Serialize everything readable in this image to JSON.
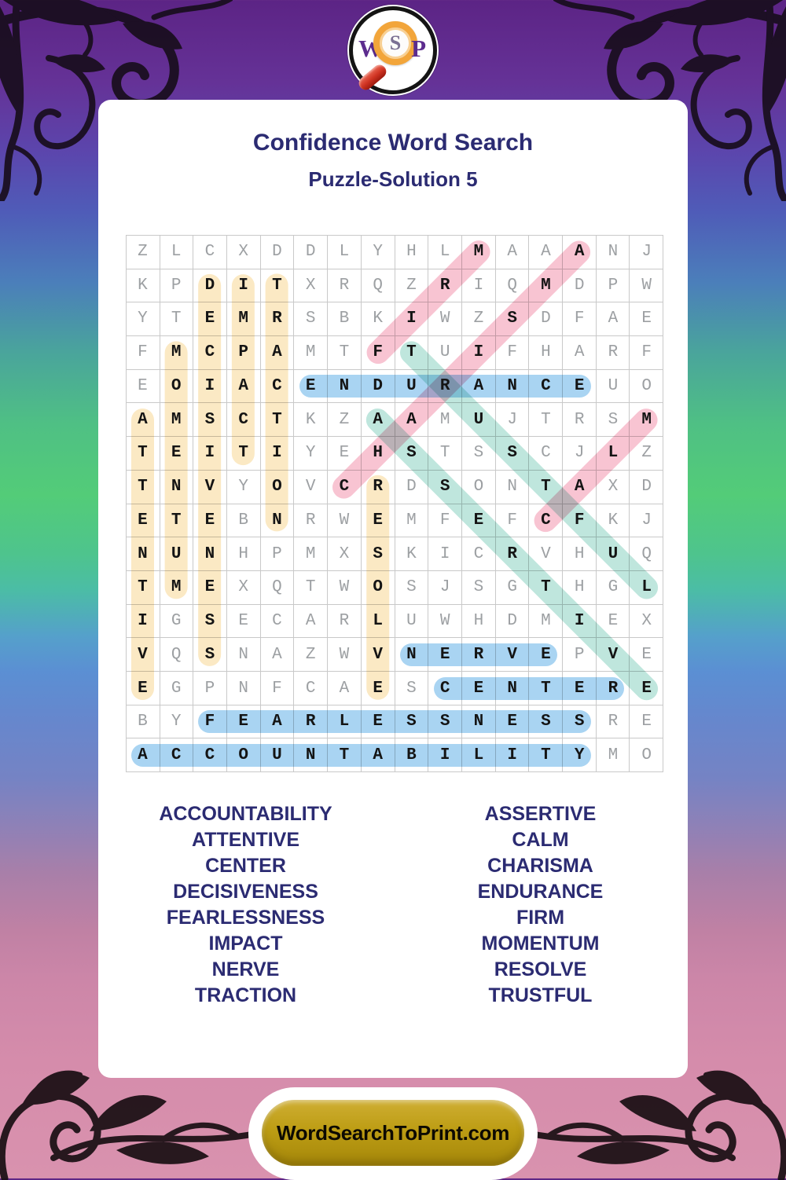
{
  "page": {
    "title": "Confidence Word Search",
    "subtitle": "Puzzle-Solution 5"
  },
  "logo": {
    "letters": [
      "W",
      "S",
      "P"
    ]
  },
  "grid": {
    "size": 16,
    "rows": [
      "ZLCXDDLYHLMAAANJ",
      "KPDITXRQZRIQMDPW",
      "YTEMRSBKIWZSDFAE",
      "FMCPAMTFTUIFHARF",
      "EOIACENDURANCEUO",
      "AMSCTKZAAMUJTRSM",
      "TEITIYEHSTSSCJLZ",
      "TNVYOVCRDSONTAXD",
      "ETEBNRWEMFEFCFKJ",
      "NUNHPMXSKICRVHUQ",
      "TMEXQTWOSJSGTHGL",
      "IGSECARLUWHDMIEX",
      "VQSNAZWVNERVEPVE",
      "EGPNFCAESCENTERE",
      "BYFEARLESSNESSRE",
      "ACCOUNTABILITYMO"
    ]
  },
  "solutions": [
    {
      "word": "ENDURANCE",
      "row": 5,
      "col": 6,
      "dir": "h",
      "color": "blue"
    },
    {
      "word": "NERVE",
      "row": 13,
      "col": 9,
      "dir": "h",
      "color": "blue"
    },
    {
      "word": "CENTER",
      "row": 14,
      "col": 10,
      "dir": "h",
      "color": "blue"
    },
    {
      "word": "FEARLESSNESS",
      "row": 15,
      "col": 3,
      "dir": "h",
      "color": "blue"
    },
    {
      "word": "ACCOUNTABILITY",
      "row": 16,
      "col": 1,
      "dir": "h",
      "color": "blue"
    },
    {
      "word": "ATTENTIVE",
      "row": 6,
      "col": 1,
      "dir": "v",
      "color": "yellow"
    },
    {
      "word": "MOMENTUM",
      "row": 4,
      "col": 2,
      "dir": "v",
      "color": "yellow"
    },
    {
      "word": "DECISIVENESS",
      "row": 2,
      "col": 3,
      "dir": "v",
      "color": "yellow"
    },
    {
      "word": "IMPACT",
      "row": 2,
      "col": 4,
      "dir": "v",
      "color": "yellow"
    },
    {
      "word": "TRACTION",
      "row": 2,
      "col": 5,
      "dir": "v",
      "color": "yellow"
    },
    {
      "word": "RESOLVE",
      "row": 8,
      "col": 8,
      "dir": "v",
      "color": "yellow"
    },
    {
      "word": "ASSERTIVE",
      "row": 6,
      "col": 8,
      "dir": "dr",
      "color": "teal"
    },
    {
      "word": "TRUSTFUL",
      "row": 4,
      "col": 9,
      "dir": "dr",
      "color": "teal"
    },
    {
      "word": "FIRM",
      "row": 4,
      "col": 8,
      "dir": "ur",
      "color": "pink"
    },
    {
      "word": "CHARISMA",
      "row": 8,
      "col": 7,
      "dir": "ur",
      "color": "pink"
    },
    {
      "word": "CALM",
      "row": 9,
      "col": 13,
      "dir": "ur",
      "color": "pink"
    }
  ],
  "highlight_colors": {
    "blue": "#a9d4f2",
    "yellow": "#fbe9c4",
    "pink": "#f8c4d2",
    "teal": "#bfe6dd"
  },
  "word_list": {
    "left": [
      "ACCOUNTABILITY",
      "ATTENTIVE",
      "CENTER",
      "DECISIVENESS",
      "FEARLESSNESS",
      "IMPACT",
      "NERVE",
      "TRACTION"
    ],
    "right": [
      "ASSERTIVE",
      "CALM",
      "CHARISMA",
      "ENDURANCE",
      "FIRM",
      "MOMENTUM",
      "RESOLVE",
      "TRUSTFUL"
    ]
  },
  "footer": {
    "site_label": "WordSearchToPrint.com"
  },
  "theme": {
    "title_color": "#2b2b72",
    "solution_letter_color": "#141414",
    "filler_letter_color": "#9da0a3",
    "grid_line_color": "#c9c9c9",
    "button_gold": "#b79310",
    "card_background": "#ffffff"
  }
}
